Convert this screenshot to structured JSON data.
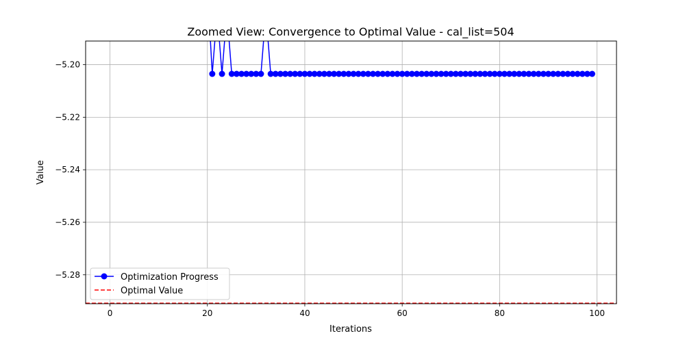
{
  "chart_data": {
    "type": "line",
    "title": "Zoomed View: Convergence to Optimal Value - cal_list=504",
    "xlabel": "Iterations",
    "ylabel": "Value",
    "xlim": [
      -5,
      104
    ],
    "ylim": [
      -5.291,
      -5.191
    ],
    "xticks": [
      0,
      20,
      40,
      60,
      80,
      100
    ],
    "yticks": [
      -5.28,
      -5.26,
      -5.24,
      -5.22,
      -5.2
    ],
    "ytick_labels": [
      "−5.28",
      "−5.26",
      "−5.24",
      "−5.22",
      "−5.20"
    ],
    "grid": true,
    "legend_position": "lower-left",
    "series": [
      {
        "name": "Optimization Progress",
        "color": "#0000ff",
        "style": "solid-line-circle-markers",
        "x": [
          20,
          21,
          22,
          23,
          24,
          25,
          26,
          27,
          28,
          29,
          30,
          31,
          32,
          33,
          34,
          35,
          36,
          37,
          38,
          39,
          40,
          41,
          42,
          43,
          44,
          45,
          46,
          47,
          48,
          49,
          50,
          51,
          52,
          53,
          54,
          55,
          56,
          57,
          58,
          59,
          60,
          61,
          62,
          63,
          64,
          65,
          66,
          67,
          68,
          69,
          70,
          71,
          72,
          73,
          74,
          75,
          76,
          77,
          78,
          79,
          80,
          81,
          82,
          83,
          84,
          85,
          86,
          87,
          88,
          89,
          90,
          91,
          92,
          93,
          94,
          95,
          96,
          97,
          98,
          99
        ],
        "y": [
          -5.17,
          -5.2035,
          -5.18,
          -5.2035,
          -5.18,
          -5.2035,
          -5.2035,
          -5.2035,
          -5.2035,
          -5.2035,
          -5.2035,
          -5.2035,
          -5.18,
          -5.2035,
          -5.2035,
          -5.2035,
          -5.2035,
          -5.2035,
          -5.2035,
          -5.2035,
          -5.2035,
          -5.2035,
          -5.2035,
          -5.2035,
          -5.2035,
          -5.2035,
          -5.2035,
          -5.2035,
          -5.2035,
          -5.2035,
          -5.2035,
          -5.2035,
          -5.2035,
          -5.2035,
          -5.2035,
          -5.2035,
          -5.2035,
          -5.2035,
          -5.2035,
          -5.2035,
          -5.2035,
          -5.2035,
          -5.2035,
          -5.2035,
          -5.2035,
          -5.2035,
          -5.2035,
          -5.2035,
          -5.2035,
          -5.2035,
          -5.2035,
          -5.2035,
          -5.2035,
          -5.2035,
          -5.2035,
          -5.2035,
          -5.2035,
          -5.2035,
          -5.2035,
          -5.2035,
          -5.2035,
          -5.2035,
          -5.2035,
          -5.2035,
          -5.2035,
          -5.2035,
          -5.2035,
          -5.2035,
          -5.2035,
          -5.2035,
          -5.2035,
          -5.2035,
          -5.2035,
          -5.2035,
          -5.2035,
          -5.2035,
          -5.2035,
          -5.2035,
          -5.2035,
          -5.2035
        ]
      },
      {
        "name": "Optimal Value",
        "color": "#ff0000",
        "style": "dashed-line",
        "y_constant": -5.2908
      }
    ]
  }
}
